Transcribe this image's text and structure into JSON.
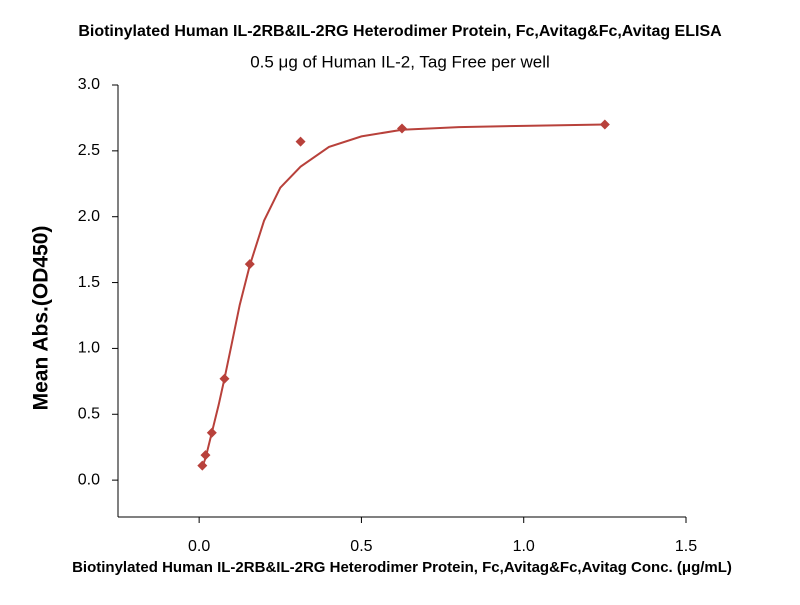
{
  "chart_data": {
    "type": "scatter",
    "title": "Biotinylated Human IL-2RB&IL-2RG Heterodimer Protein, Fc,Avitag&Fc,Avitag ELISA",
    "subtitle": "0.5 μg of Human IL-2, Tag Free per well",
    "x_label": "Biotinylated Human IL-2RB&IL-2RG Heterodimer Protein, Fc,Avitag&Fc,Avitag Conc. (μg/mL)",
    "y_label": "Mean Abs.(OD450)",
    "series": [
      {
        "type": "scatter",
        "color": "#b8413b",
        "x": [
          0.0098,
          0.0195,
          0.039,
          0.078,
          0.156,
          0.3125,
          0.625,
          1.25
        ],
        "values": [
          0.11,
          0.19,
          0.36,
          0.77,
          1.64,
          2.57,
          2.67,
          2.7
        ]
      },
      {
        "type": "line",
        "color": "#b8413b",
        "x": [
          0.0098,
          0.02,
          0.039,
          0.06,
          0.078,
          0.1,
          0.125,
          0.156,
          0.2,
          0.25,
          0.3125,
          0.4,
          0.5,
          0.625,
          0.8,
          1.0,
          1.25
        ],
        "values": [
          0.1,
          0.17,
          0.36,
          0.57,
          0.77,
          1.03,
          1.33,
          1.63,
          1.97,
          2.22,
          2.38,
          2.53,
          2.61,
          2.66,
          2.68,
          2.69,
          2.7
        ]
      }
    ],
    "xlim": [
      -0.25,
      1.5
    ],
    "xticks": [
      {
        "value": 0,
        "label": "0.0"
      },
      0.5,
      {
        "value": 1,
        "label": "1.0"
      },
      1.5
    ],
    "ylim": [
      -0.28,
      3.0
    ],
    "yticks": [
      {
        "value": 0,
        "label": "0.0"
      },
      0.5,
      {
        "value": 1,
        "label": "1.0"
      },
      1.5,
      {
        "value": 2,
        "label": "2.0"
      },
      2.5,
      {
        "value": 3,
        "label": "3.0"
      }
    ],
    "grid": false
  }
}
